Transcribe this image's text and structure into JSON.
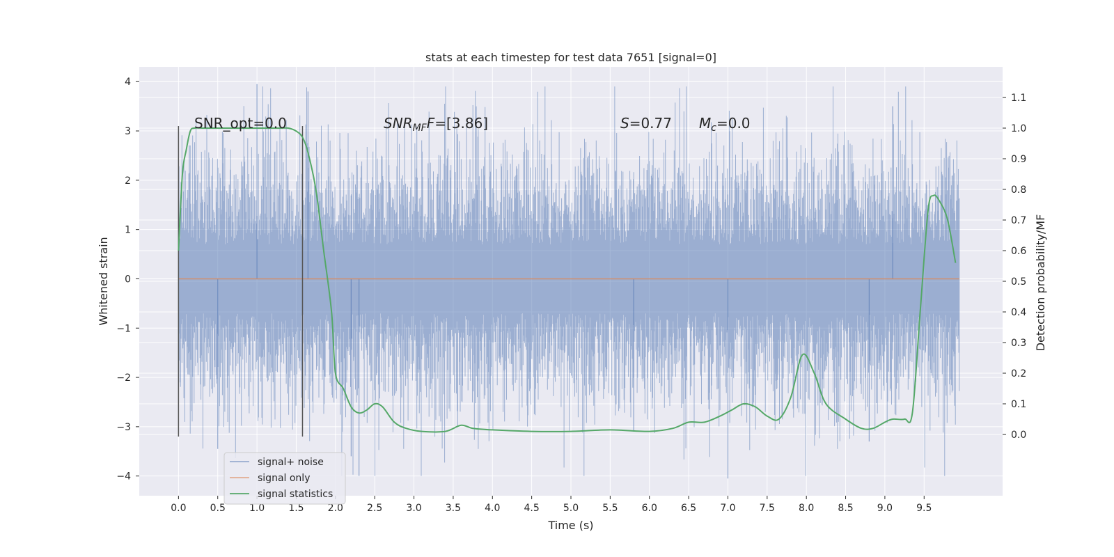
{
  "chart_data": {
    "type": "line",
    "title": "stats at each timestep for test data 7651 [signal=0]",
    "xlabel": "Time (s)",
    "ylabel": "Whitened strain",
    "y2label": "Detection probability/MF",
    "xlim": [
      -0.5,
      10.5
    ],
    "ylim": [
      -4.4,
      4.3
    ],
    "y2lim": [
      -0.2,
      1.2
    ],
    "xticks": [
      "0.0",
      "0.5",
      "1.0",
      "1.5",
      "2.0",
      "2.5",
      "3.0",
      "3.5",
      "4.0",
      "4.5",
      "5.0",
      "5.5",
      "6.0",
      "6.5",
      "7.0",
      "7.5",
      "8.0",
      "8.5",
      "9.0",
      "9.5"
    ],
    "yticks": [
      "4",
      "3",
      "2",
      "1",
      "0",
      "−1",
      "−2",
      "−3",
      "−4"
    ],
    "y2ticks": [
      "1.1",
      "1.0",
      "0.9",
      "0.8",
      "0.7",
      "0.6",
      "0.5",
      "0.4",
      "0.3",
      "0.2",
      "0.1",
      "0.0"
    ],
    "grid": true,
    "legend_position": "lower-left",
    "colors": {
      "noise": "#4c72b0",
      "signal": "#dd8452",
      "stats": "#55a868",
      "background": "#eaeaf2",
      "grid": "#ffffff",
      "markers": "#555555"
    },
    "annotations": {
      "snr_opt": "SNR_opt=0.0",
      "snr_mf_main": "SNR",
      "snr_mf_sub": "MF",
      "snr_mf_val": "=[3.86]",
      "s_main": "S",
      "s_val": "=0.77",
      "mc_main": "M",
      "mc_sub": "c",
      "mc_val": "=0.0"
    },
    "vlines": [
      0.0,
      1.58
    ],
    "legend": [
      "signal+ noise",
      "signal only",
      "signal statistics"
    ],
    "series": [
      {
        "name": "signal+ noise",
        "axis": "left",
        "envelope": {
          "t_start": 0.0,
          "t_end": 9.95,
          "typical": 1.2,
          "peak_max": 3.9,
          "peak_min": -4.0
        }
      },
      {
        "name": "signal only",
        "axis": "left",
        "x": [
          0.0,
          9.95
        ],
        "y": [
          0.0,
          0.0
        ]
      },
      {
        "name": "signal statistics",
        "axis": "right",
        "x": [
          0.0,
          0.05,
          0.1,
          0.15,
          0.2,
          0.3,
          0.5,
          1.0,
          1.3,
          1.4,
          1.5,
          1.58,
          1.65,
          1.75,
          1.85,
          1.95,
          2.0,
          2.1,
          2.2,
          2.3,
          2.4,
          2.5,
          2.6,
          2.75,
          2.9,
          3.1,
          3.4,
          3.6,
          3.75,
          4.0,
          4.5,
          5.0,
          5.5,
          6.0,
          6.3,
          6.5,
          6.7,
          6.9,
          7.05,
          7.2,
          7.35,
          7.5,
          7.65,
          7.8,
          7.95,
          8.1,
          8.25,
          8.5,
          8.7,
          8.85,
          9.0,
          9.1,
          9.25,
          9.35,
          9.45,
          9.55,
          9.62,
          9.7,
          9.8,
          9.9
        ],
        "y": [
          0.6,
          0.85,
          0.93,
          0.99,
          1.0,
          1.0,
          1.0,
          1.0,
          1.0,
          1.0,
          0.99,
          0.97,
          0.92,
          0.8,
          0.6,
          0.4,
          0.2,
          0.15,
          0.09,
          0.07,
          0.08,
          0.1,
          0.09,
          0.04,
          0.02,
          0.01,
          0.01,
          0.03,
          0.02,
          0.015,
          0.01,
          0.01,
          0.015,
          0.01,
          0.02,
          0.04,
          0.04,
          0.06,
          0.08,
          0.1,
          0.09,
          0.06,
          0.05,
          0.12,
          0.26,
          0.2,
          0.1,
          0.05,
          0.02,
          0.02,
          0.04,
          0.05,
          0.05,
          0.07,
          0.4,
          0.73,
          0.78,
          0.76,
          0.7,
          0.56
        ]
      }
    ]
  }
}
